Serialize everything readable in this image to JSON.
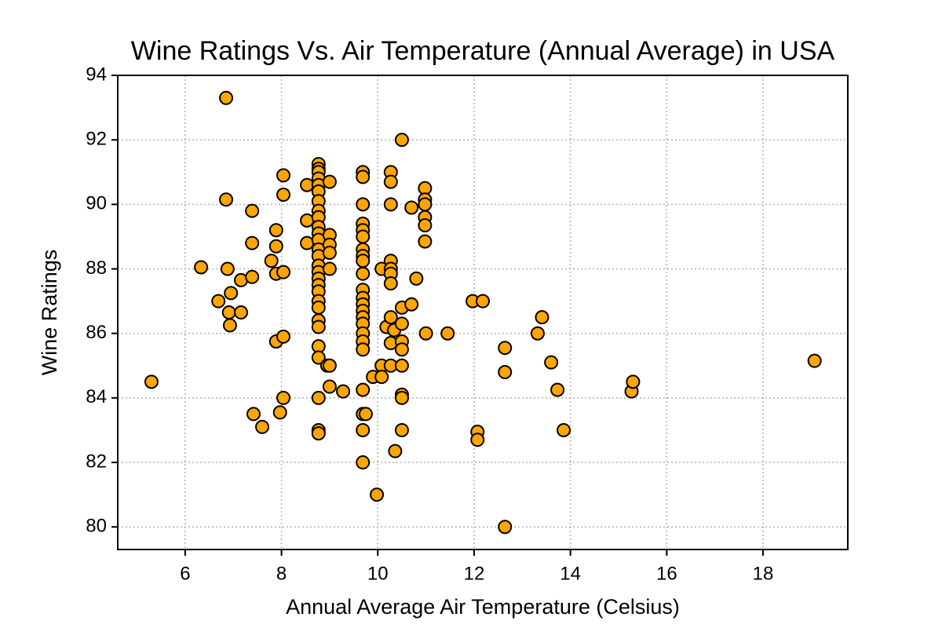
{
  "chart_data": {
    "type": "scatter",
    "title": "Wine Ratings Vs. Air Temperature (Annual Average) in USA",
    "x_label": "Annual Average Air Temperature (Celsius)",
    "y_label": "Wine Ratings",
    "xlim": [
      4.6,
      19.76
    ],
    "ylim": [
      79.3,
      94
    ],
    "xticks": [
      6,
      8,
      10,
      12,
      14,
      16,
      18
    ],
    "yticks": [
      80,
      82,
      84,
      86,
      88,
      90,
      92,
      94
    ],
    "grid": true,
    "series": [
      {
        "color": "#ffa500",
        "edgecolor": "#000000",
        "x": [
          5.3,
          6.85,
          6.33,
          6.85,
          6.88,
          6.69,
          6.95,
          6.91,
          6.93,
          7.16,
          7.16,
          7.39,
          7.39,
          7.39,
          7.42,
          7.6,
          7.79,
          7.89,
          7.89,
          7.89,
          7.89,
          7.97,
          8.04,
          8.04,
          8.04,
          8.04,
          8.04,
          8.53,
          8.53,
          8.53,
          8.77,
          8.77,
          8.77,
          8.77,
          8.77,
          8.77,
          8.77,
          8.77,
          8.77,
          8.77,
          8.77,
          8.77,
          8.77,
          8.77,
          8.77,
          8.77,
          8.77,
          8.77,
          8.77,
          8.77,
          8.77,
          8.77,
          8.77,
          8.77,
          8.77,
          8.77,
          8.77,
          8.77,
          8.95,
          9.0,
          9.0,
          9.0,
          9.0,
          9.0,
          9.0,
          9.0,
          9.28,
          9.69,
          9.69,
          9.69,
          9.69,
          9.69,
          9.69,
          9.69,
          9.69,
          9.69,
          9.69,
          9.69,
          9.69,
          9.69,
          9.69,
          9.69,
          9.69,
          9.69,
          9.69,
          9.69,
          9.69,
          9.69,
          9.69,
          9.69,
          9.75,
          9.98,
          9.9,
          10.08,
          10.08,
          10.08,
          10.18,
          10.27,
          10.27,
          10.27,
          10.27,
          10.27,
          10.27,
          10.27,
          10.27,
          10.27,
          10.27,
          10.34,
          10.36,
          10.5,
          10.5,
          10.5,
          10.5,
          10.5,
          10.5,
          10.5,
          10.5,
          10.5,
          10.7,
          10.7,
          10.8,
          10.98,
          10.98,
          10.98,
          10.98,
          10.98,
          10.98,
          11.0,
          11.45,
          11.97,
          12.18,
          12.07,
          12.07,
          12.64,
          12.64,
          12.64,
          13.32,
          13.41,
          13.6,
          13.73,
          13.86,
          15.27,
          15.3,
          19.07
        ],
        "values": [
          84.5,
          93.3,
          88.05,
          90.15,
          88.0,
          87.0,
          87.25,
          86.65,
          86.25,
          86.65,
          87.65,
          87.75,
          89.8,
          88.8,
          83.5,
          83.1,
          88.25,
          88.7,
          89.2,
          87.85,
          85.75,
          83.55,
          90.9,
          90.3,
          87.9,
          85.9,
          84.0,
          90.6,
          89.5,
          88.8,
          91.25,
          91.1,
          91.0,
          90.8,
          90.6,
          90.4,
          90.1,
          89.8,
          89.6,
          89.3,
          89.1,
          88.9,
          88.6,
          88.4,
          88.1,
          87.9,
          87.7,
          87.5,
          87.3,
          87.0,
          86.8,
          86.4,
          86.2,
          85.6,
          85.25,
          84.0,
          83.0,
          82.9,
          85.0,
          90.7,
          89.05,
          88.75,
          88.5,
          88.0,
          85.0,
          84.35,
          84.2,
          91.0,
          90.85,
          90.0,
          89.4,
          89.2,
          89.0,
          88.6,
          88.4,
          88.25,
          87.85,
          87.35,
          87.1,
          86.9,
          86.7,
          86.5,
          86.3,
          86.0,
          85.75,
          85.5,
          84.25,
          83.5,
          83.0,
          82.0,
          83.5,
          81.0,
          84.65,
          85.0,
          84.65,
          88.0,
          86.2,
          91.0,
          90.7,
          90.0,
          88.25,
          88.0,
          87.85,
          87.55,
          86.5,
          85.7,
          85.0,
          86.1,
          82.35,
          92.0,
          86.8,
          86.3,
          85.75,
          85.5,
          85.0,
          84.1,
          84.0,
          83.0,
          86.9,
          89.9,
          87.7,
          90.5,
          90.15,
          90.0,
          89.6,
          89.35,
          88.85,
          86.0,
          86.0,
          87.0,
          87.0,
          82.95,
          82.7,
          85.55,
          84.8,
          80.0,
          86.0,
          86.5,
          85.1,
          84.25,
          83.0,
          84.2,
          84.5,
          85.15
        ]
      }
    ]
  }
}
